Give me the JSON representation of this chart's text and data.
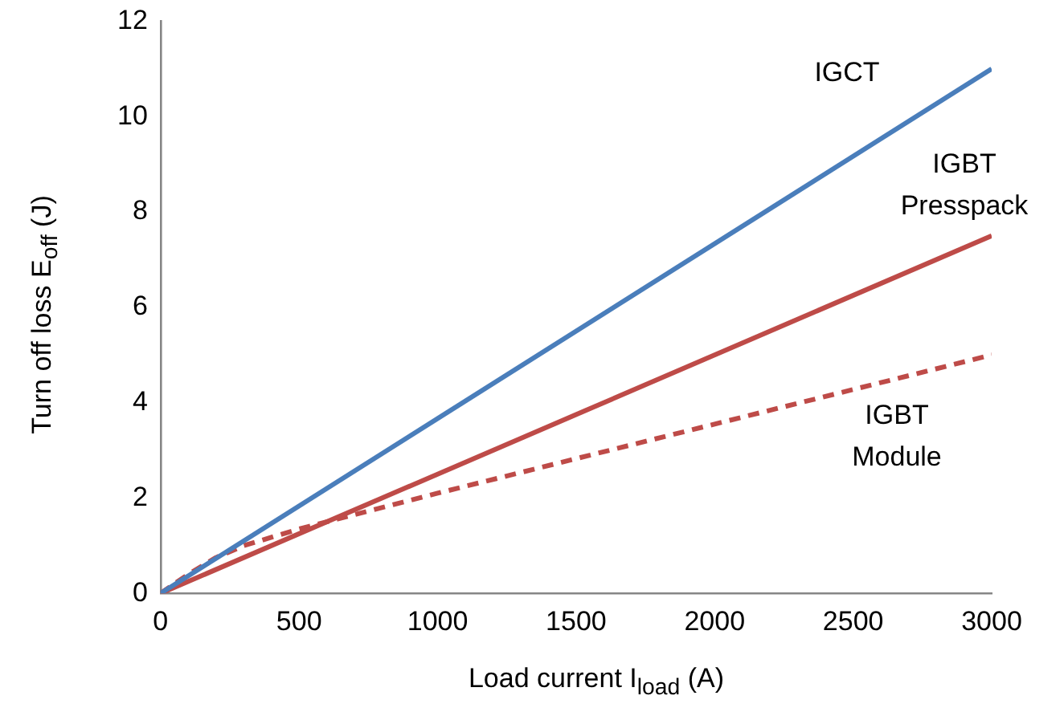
{
  "chart_data": {
    "type": "line",
    "xlabel": "Load current I$_{load}$ (A)",
    "ylabel": "Turn off loss E$_{off}$ (J)",
    "xlim": [
      0,
      3000
    ],
    "xticks": [
      0,
      500,
      1000,
      1500,
      2000,
      2500,
      3000
    ],
    "ylim": [
      0,
      12
    ],
    "yticks": [
      0,
      2,
      4,
      6,
      8,
      10,
      12
    ],
    "grid": false,
    "legend": false,
    "marker": "none",
    "series": [
      {
        "name": "IGCT",
        "color": "#4a7ebb",
        "line_style": "solid",
        "x": [
          0,
          3000
        ],
        "values": [
          0,
          11
        ]
      },
      {
        "name": "IGBT Presspack",
        "color": "#be4b48",
        "line_style": "solid",
        "x": [
          0,
          3000
        ],
        "values": [
          0,
          7.5
        ]
      },
      {
        "name": "IGBT Module",
        "color": "#be4b48",
        "line_style": "dashed",
        "x": [
          0,
          100,
          200,
          300,
          500,
          1000,
          2000,
          3000
        ],
        "values": [
          0,
          0.4,
          0.75,
          1.0,
          1.35,
          2.1,
          3.55,
          5
        ]
      }
    ]
  }
}
